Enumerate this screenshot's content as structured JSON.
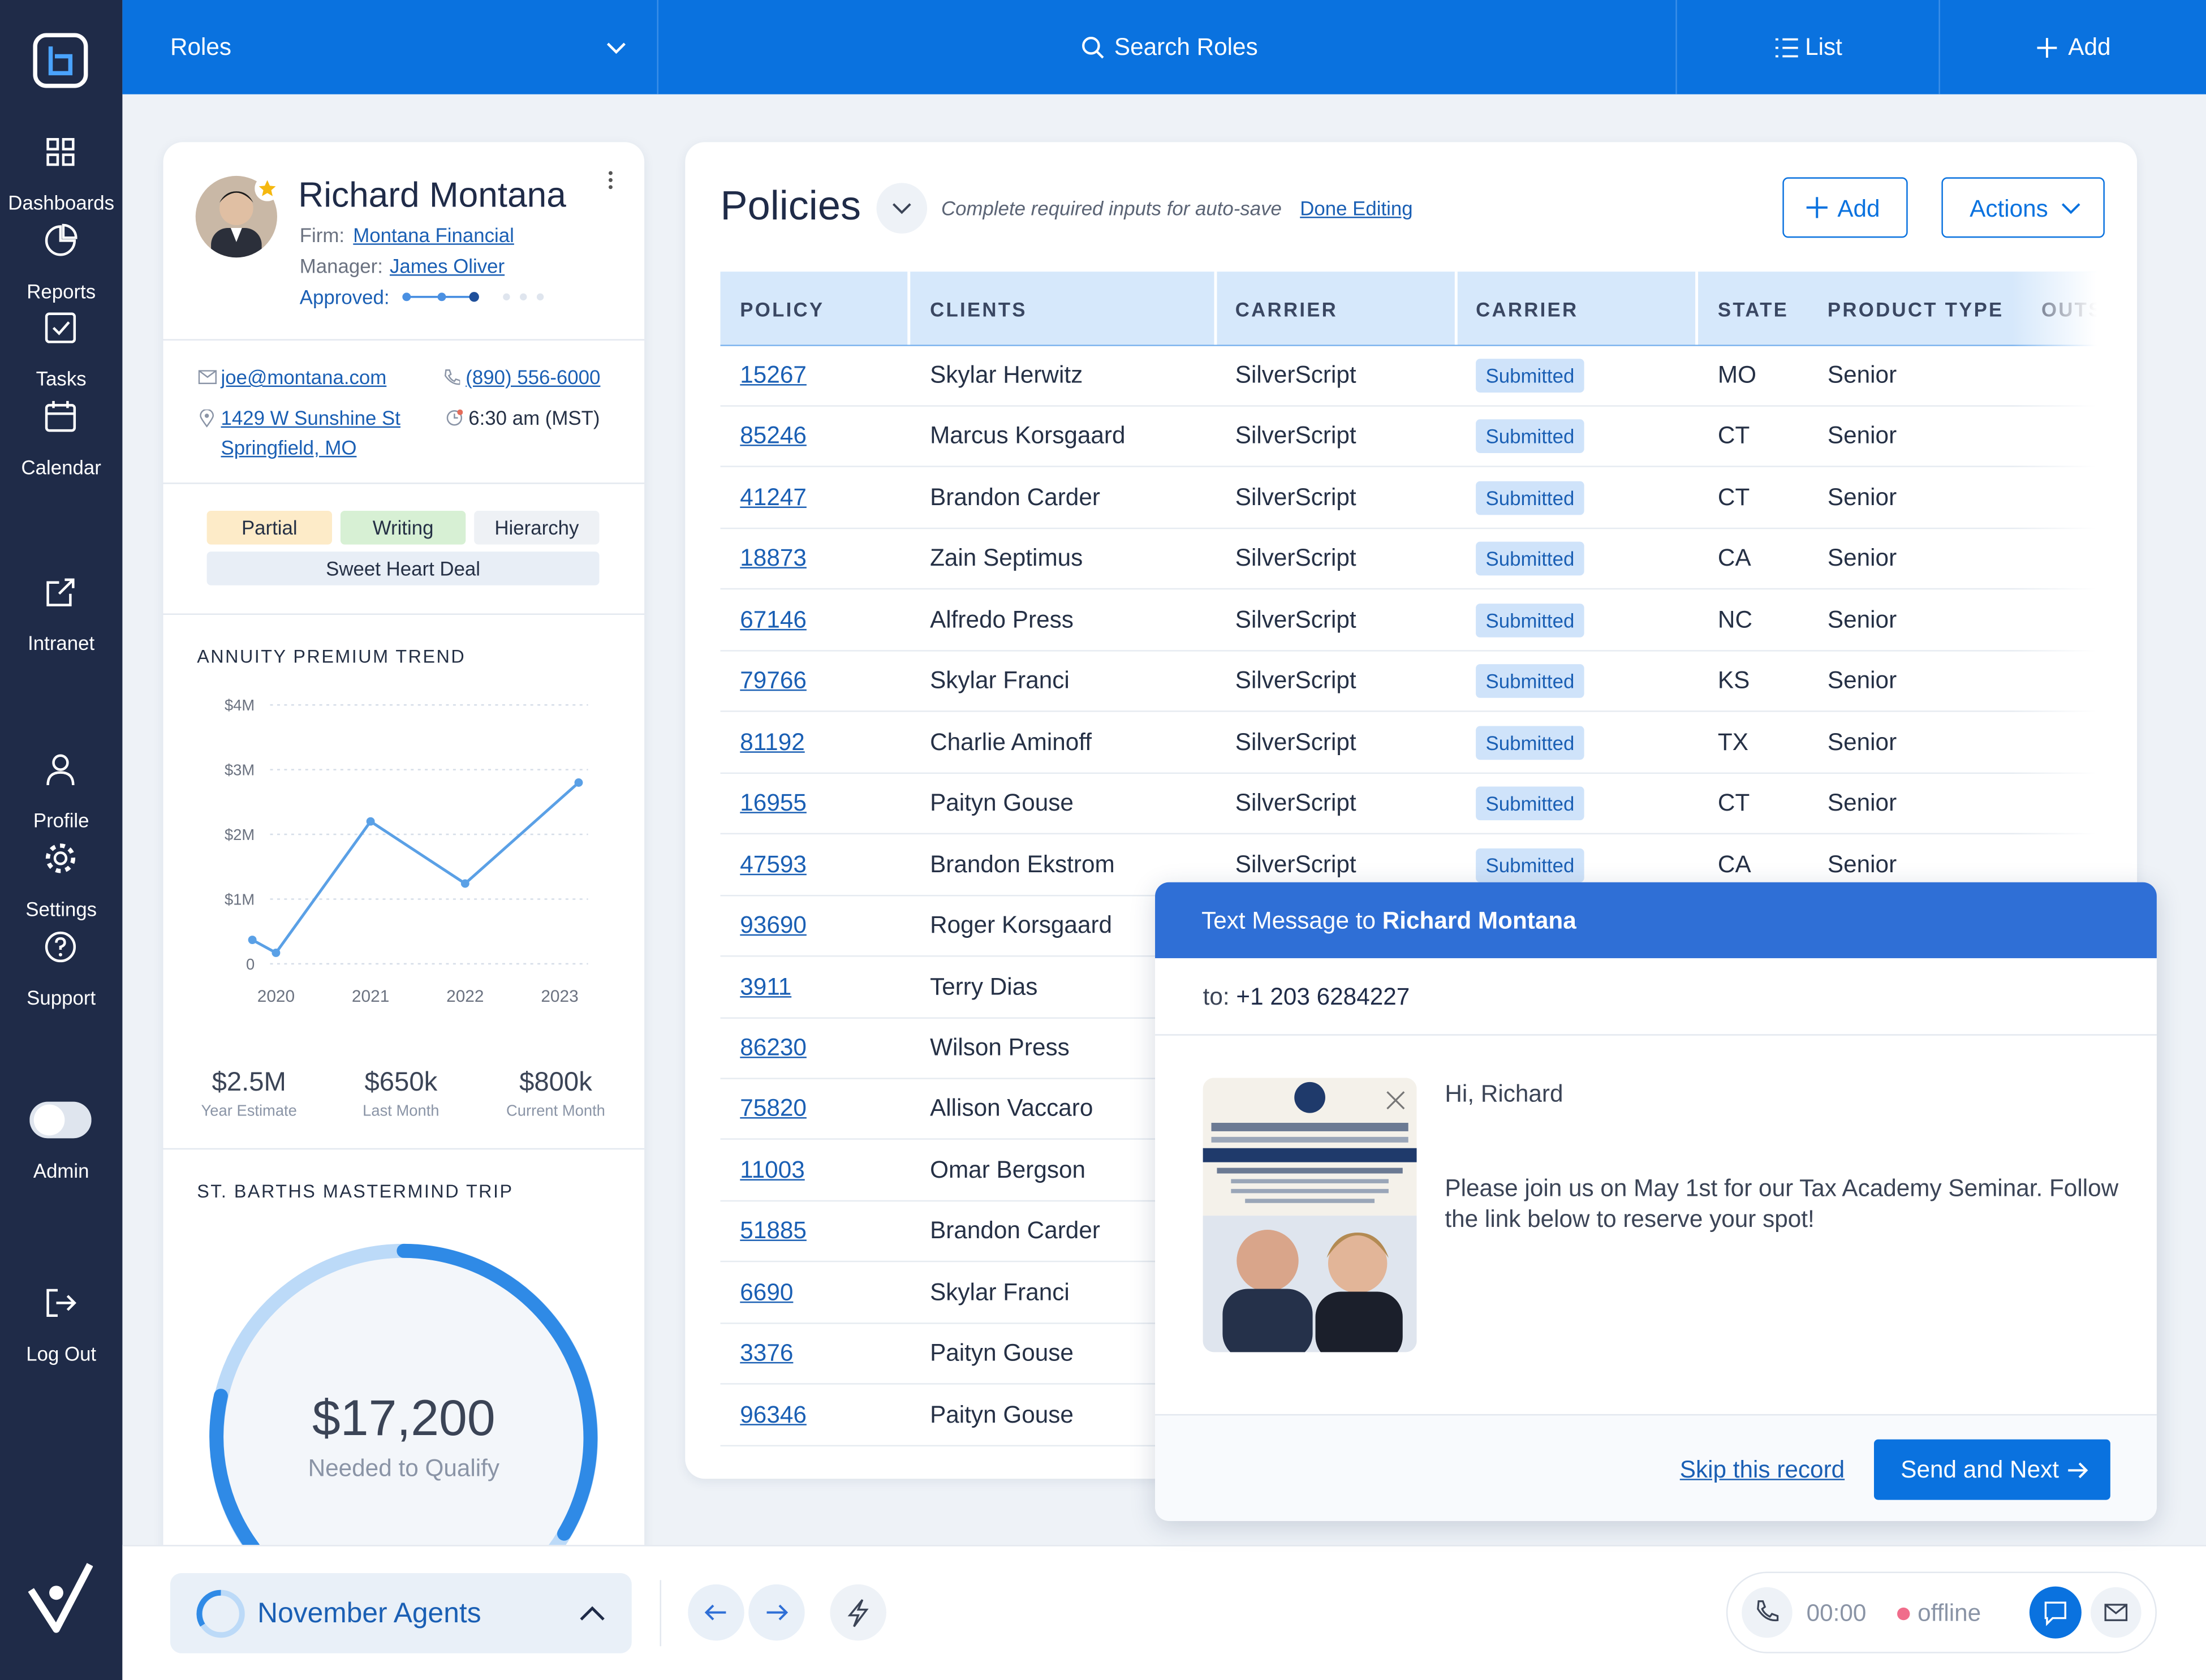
{
  "topbar": {
    "role_select": "Roles",
    "search": "Search Roles",
    "list": "List",
    "add": "Add"
  },
  "sidebar": {
    "items": [
      "Dashboards",
      "Reports",
      "Tasks",
      "Calendar",
      "Intranet",
      "Profile",
      "Settings",
      "Support",
      "Admin",
      "Log Out"
    ]
  },
  "profile": {
    "name": "Richard Montana",
    "firm_label": "Firm:",
    "firm": "Montana Financial",
    "manager_label": "Manager:",
    "manager": "James Oliver",
    "approved_label": "Approved:",
    "email": "joe@montana.com",
    "phone": "(890) 556-6000",
    "address_line1": "1429 W Sunshine St",
    "address_line2": "Springfield, MO",
    "local_time": "6:30 am (MST)",
    "tags": [
      "Partial",
      "Writing",
      "Hierarchy",
      "Sweet Heart Deal"
    ]
  },
  "chart_data": {
    "type": "line",
    "title": "ANNUITY PREMIUM TREND",
    "color": "#5aa0e6",
    "x": [
      2019.75,
      2020,
      2021,
      2022,
      2023.2
    ],
    "values": [
      0.37,
      0.17,
      2.2,
      1.24,
      2.8
    ],
    "xlim": [
      2019.7,
      2023.3
    ],
    "xticks": [
      2020,
      2021,
      2022,
      2023
    ],
    "ylim": [
      0,
      4
    ],
    "yticks": [
      0,
      {
        "value": 1,
        "label": "$1M"
      },
      {
        "value": 2,
        "label": "$2M"
      },
      {
        "value": 3,
        "label": "$3M"
      },
      {
        "value": 4,
        "label": "$4M"
      }
    ],
    "grid": true
  },
  "stats": [
    {
      "value": "$2.5M",
      "label": "Year Estimate"
    },
    {
      "value": "$650k",
      "label": "Last Month"
    },
    {
      "value": "$800k",
      "label": "Current Month"
    }
  ],
  "trip": {
    "title": "ST. BARTHS MASTERMIND TRIP",
    "amount": "$17,200",
    "caption": "Needed to Qualify"
  },
  "policies": {
    "title": "Policies",
    "hint": "Complete required inputs for auto-save",
    "done_link": "Done Editing",
    "add": "Add",
    "actions": "Actions",
    "columns": [
      "POLICY",
      "CLIENTS",
      "CARRIER",
      "CARRIER",
      "STATE",
      "PRODUCT TYPE",
      "OUTS"
    ],
    "rows": [
      [
        "15267",
        "Skylar Herwitz",
        "SilverScript",
        "Submitted",
        "MO",
        "Senior"
      ],
      [
        "85246",
        "Marcus Korsgaard",
        "SilverScript",
        "Submitted",
        "CT",
        "Senior"
      ],
      [
        "41247",
        "Brandon Carder",
        "SilverScript",
        "Submitted",
        "CT",
        "Senior"
      ],
      [
        "18873",
        "Zain Septimus",
        "SilverScript",
        "Submitted",
        "CA",
        "Senior"
      ],
      [
        "67146",
        "Alfredo Press",
        "SilverScript",
        "Submitted",
        "NC",
        "Senior"
      ],
      [
        "79766",
        "Skylar Franci",
        "SilverScript",
        "Submitted",
        "KS",
        "Senior"
      ],
      [
        "81192",
        "Charlie Aminoff",
        "SilverScript",
        "Submitted",
        "TX",
        "Senior"
      ],
      [
        "16955",
        "Paityn Gouse",
        "SilverScript",
        "Submitted",
        "CT",
        "Senior"
      ],
      [
        "47593",
        "Brandon Ekstrom",
        "SilverScript",
        "Submitted",
        "CA",
        "Senior"
      ],
      [
        "93690",
        "Roger Korsgaard"
      ],
      [
        "3911",
        "Terry Dias"
      ],
      [
        "86230",
        "Wilson Press"
      ],
      [
        "75820",
        "Allison Vaccaro"
      ],
      [
        "11003",
        "Omar Bergson"
      ],
      [
        "51885",
        "Brandon Carder"
      ],
      [
        "6690",
        "Skylar Franci"
      ],
      [
        "3376",
        "Paityn Gouse"
      ],
      [
        "96346",
        "Paityn Gouse"
      ]
    ]
  },
  "message": {
    "title_prefix": "Text Message to",
    "recipient": "Richard Montana",
    "to_label": "to:",
    "to_number": "+1 203 6284227",
    "greeting": "Hi, Richard",
    "body": "Please join us on May 1st for our Tax Academy Seminar. Follow the link below to reserve your spot!",
    "skip": "Skip this record",
    "send": "Send and Next"
  },
  "footer": {
    "list": "November Agents",
    "timer": "00:00",
    "status": "offline"
  }
}
